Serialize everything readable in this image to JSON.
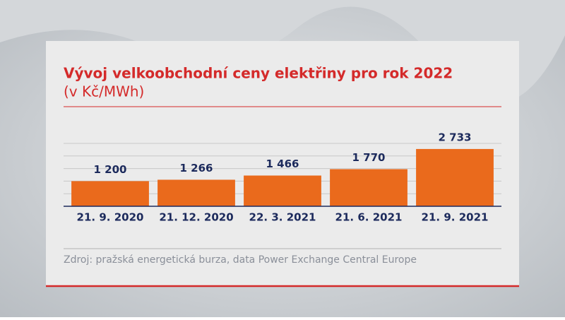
{
  "chart_data": {
    "type": "bar",
    "title": "Vývoj velkoobchodní ceny elektřiny pro rok 2022",
    "subtitle": "(v Kč/MWh)",
    "categories": [
      "21. 9. 2020",
      "21. 12. 2020",
      "22. 3. 2021",
      "21. 6. 2021",
      "21. 9. 2021"
    ],
    "values": [
      1200,
      1266,
      1466,
      1770,
      2733
    ],
    "value_labels": [
      "1 200",
      "1 266",
      "1 466",
      "1 770",
      "2 733"
    ],
    "color": "#ea6a1c",
    "ylim": [
      0,
      3000
    ],
    "yticks": [
      0,
      600,
      1200,
      1800,
      2400,
      3000
    ],
    "grid": true,
    "source": "Zdroj: pražská energetická burza, data Power Exchange Central Europe"
  }
}
